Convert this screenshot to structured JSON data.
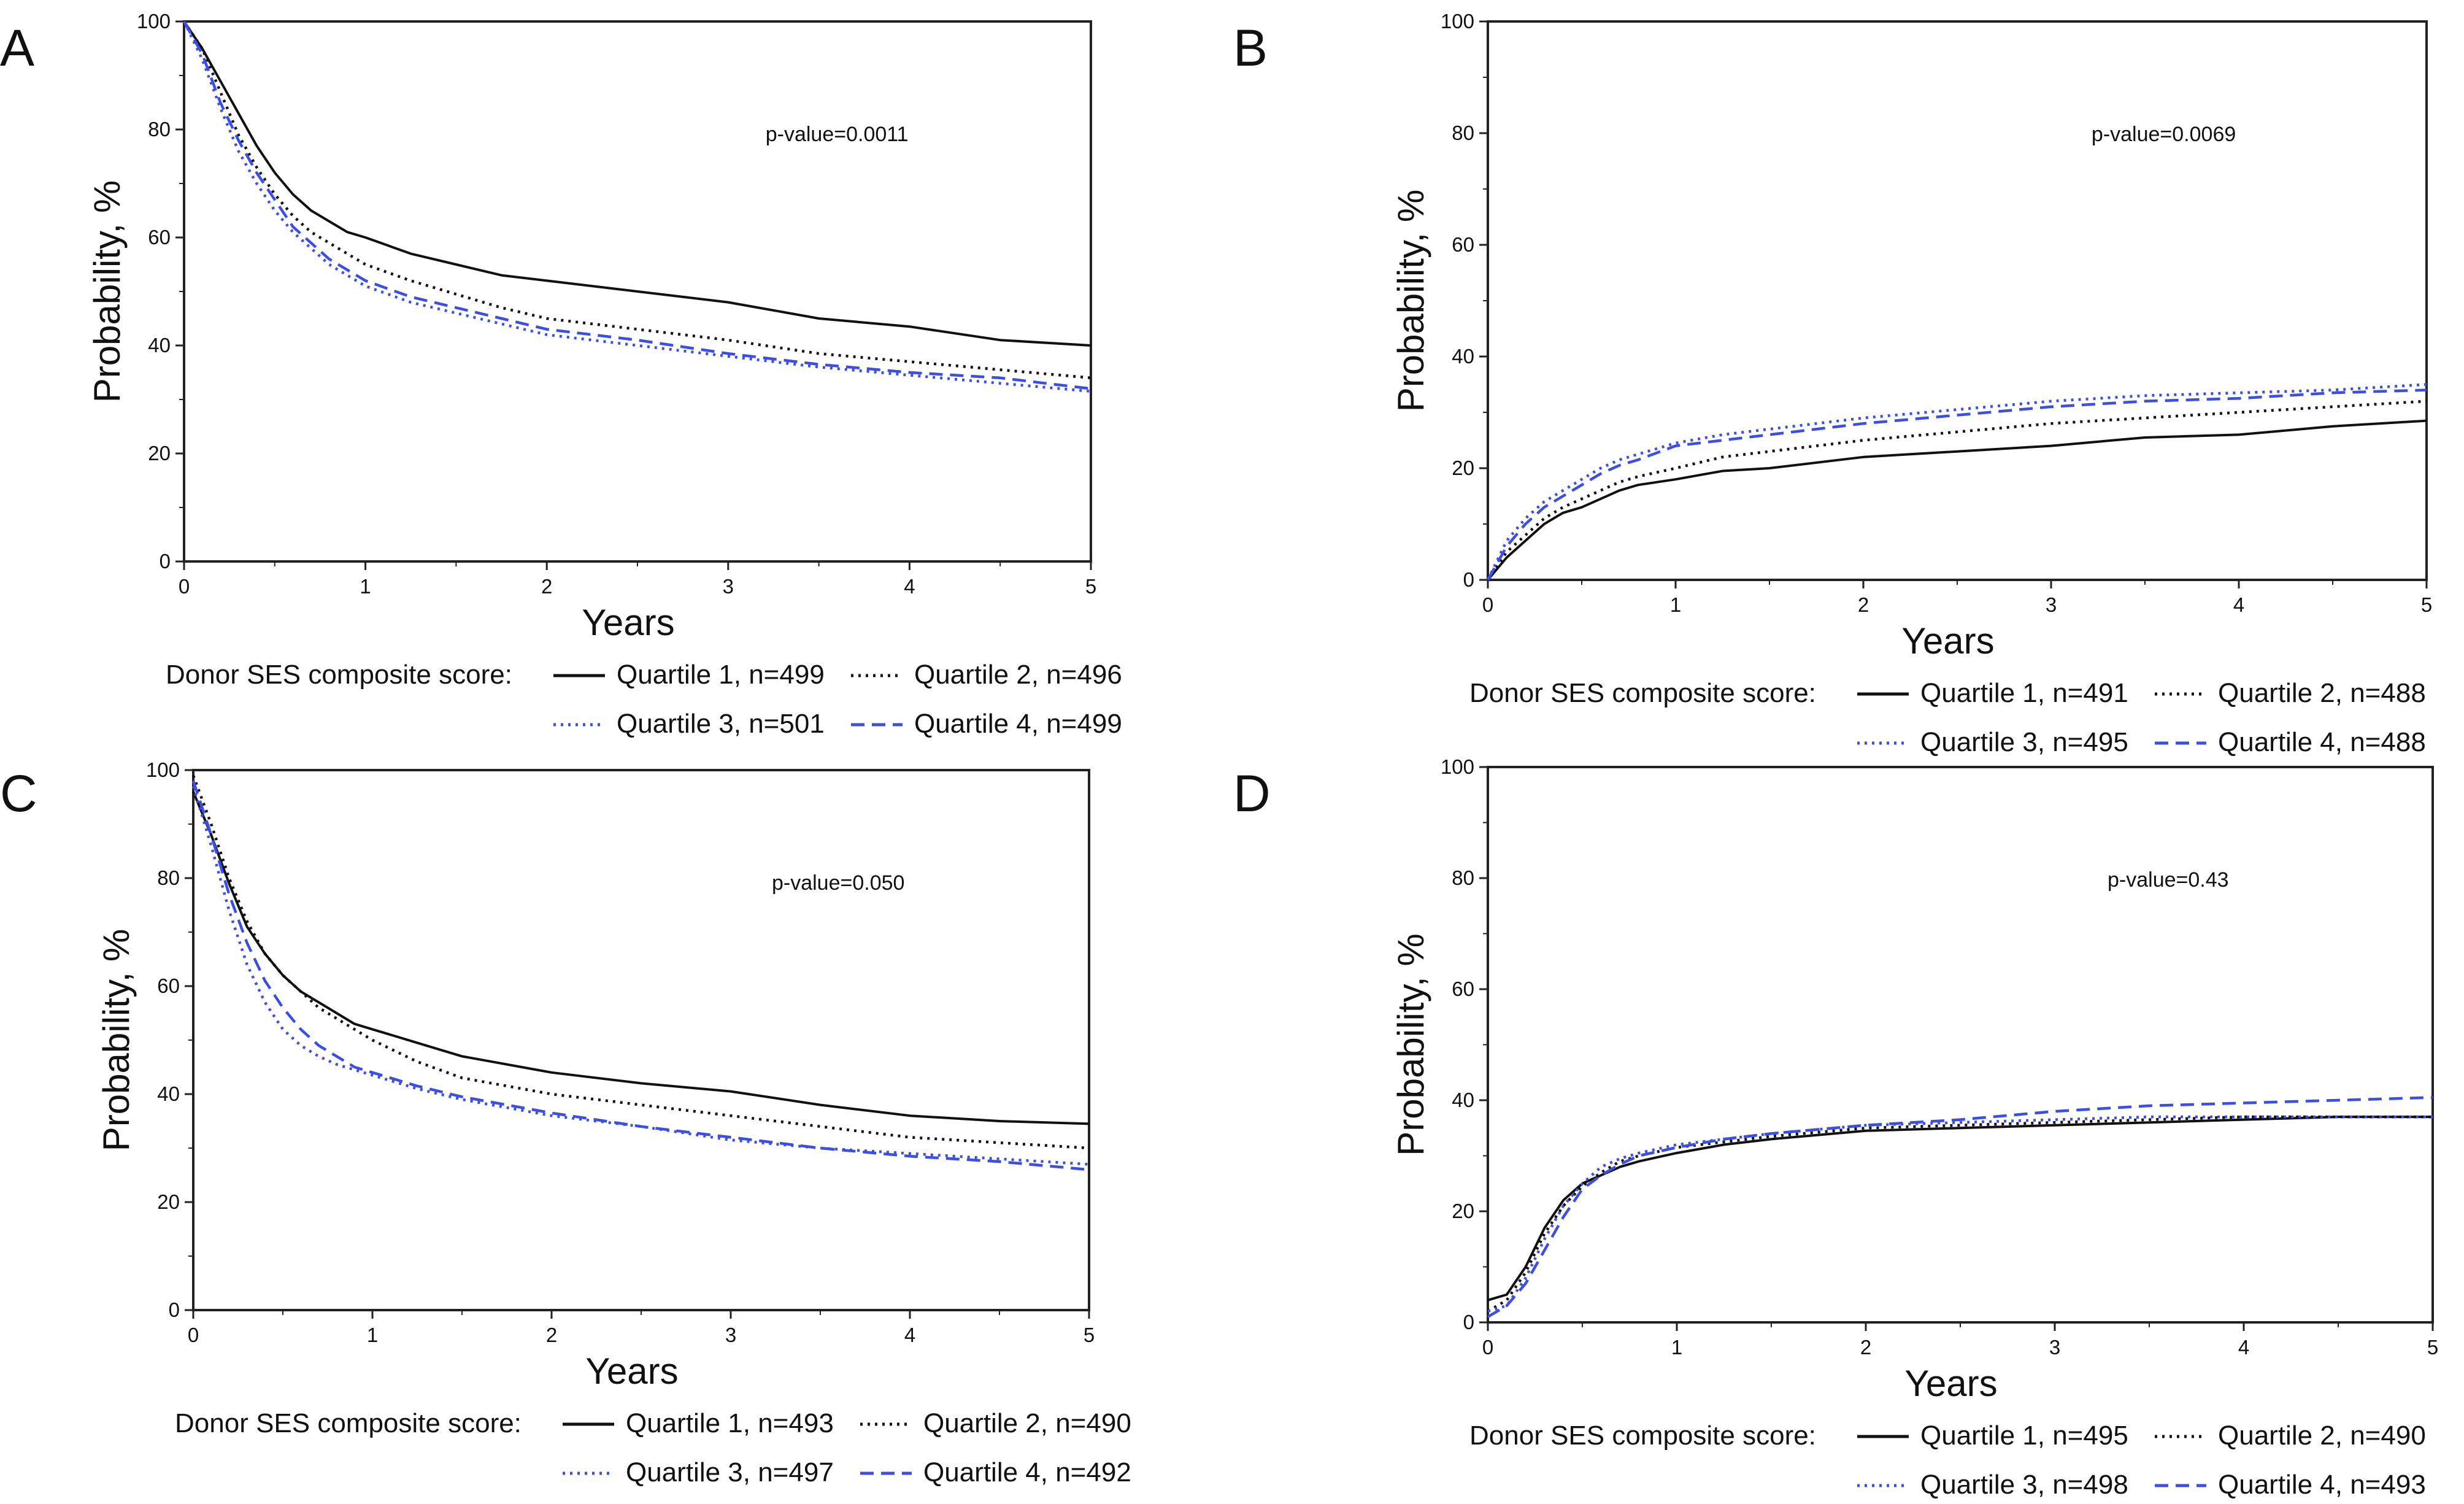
{
  "figure": {
    "legend_title": "Donor SES composite score:",
    "y_axis_label": "Probability, %",
    "x_axis_label": "Years",
    "colors": {
      "black": "#111111",
      "blue": "#3d4fe0"
    }
  },
  "chart_data": [
    {
      "panel": "A",
      "type": "line",
      "xlabel": "Years",
      "ylabel": "Probability, %",
      "xlim": [
        0,
        5
      ],
      "ylim": [
        0,
        100
      ],
      "xticks": [
        0,
        1,
        2,
        3,
        4,
        5
      ],
      "yticks": [
        0,
        20,
        40,
        60,
        80,
        100
      ],
      "annotation": "p-value=0.0011",
      "series": [
        {
          "name": "Quartile 1, n=499",
          "color": "black",
          "dash": "solid",
          "x": [
            0,
            0.1,
            0.2,
            0.3,
            0.4,
            0.5,
            0.6,
            0.7,
            0.8,
            0.9,
            1.0,
            1.25,
            1.5,
            1.75,
            2.0,
            2.5,
            3.0,
            3.5,
            4.0,
            4.5,
            5.0
          ],
          "y": [
            100,
            95,
            89,
            83,
            77,
            72,
            68,
            65,
            63,
            61,
            60,
            57,
            55,
            53,
            52,
            50,
            48,
            45,
            43.5,
            41,
            40
          ]
        },
        {
          "name": "Quartile 2, n=496",
          "color": "black",
          "dash": "dot",
          "x": [
            0,
            0.1,
            0.2,
            0.3,
            0.4,
            0.5,
            0.6,
            0.7,
            0.8,
            0.9,
            1.0,
            1.25,
            1.5,
            1.75,
            2.0,
            2.5,
            3.0,
            3.5,
            4.0,
            4.5,
            5.0
          ],
          "y": [
            100,
            95,
            87,
            79,
            73,
            68,
            64,
            61,
            59,
            57,
            55,
            52,
            49.5,
            47,
            45,
            43,
            41,
            38.5,
            37,
            35.5,
            34
          ]
        },
        {
          "name": "Quartile 3, n=501",
          "color": "blue",
          "dash": "dot",
          "x": [
            0,
            0.1,
            0.2,
            0.3,
            0.4,
            0.5,
            0.6,
            0.7,
            0.8,
            0.9,
            1.0,
            1.25,
            1.5,
            1.75,
            2.0,
            2.5,
            3.0,
            3.5,
            4.0,
            4.5,
            5.0
          ],
          "y": [
            100,
            93,
            84,
            76,
            70,
            65,
            61,
            58,
            55,
            53,
            51,
            48,
            46,
            44,
            42,
            40,
            38,
            36,
            34.5,
            33,
            31.5
          ]
        },
        {
          "name": "Quartile 4, n=499",
          "color": "blue",
          "dash": "dash",
          "x": [
            0,
            0.1,
            0.2,
            0.3,
            0.4,
            0.5,
            0.6,
            0.7,
            0.8,
            0.9,
            1.0,
            1.25,
            1.5,
            1.75,
            2.0,
            2.5,
            3.0,
            3.5,
            4.0,
            4.5,
            5.0
          ],
          "y": [
            100,
            94,
            85,
            78,
            72,
            67,
            62,
            59,
            56,
            54,
            52,
            49,
            47,
            45,
            43,
            41,
            38.5,
            36.5,
            35,
            34,
            32
          ]
        }
      ],
      "legend": [
        "Quartile 1, n=499",
        "Quartile 2, n=496",
        "Quartile 3, n=501",
        "Quartile 4, n=499"
      ]
    },
    {
      "panel": "B",
      "type": "line",
      "xlabel": "Years",
      "ylabel": "Probability, %",
      "xlim": [
        0,
        5
      ],
      "ylim": [
        0,
        100
      ],
      "xticks": [
        0,
        1,
        2,
        3,
        4,
        5
      ],
      "yticks": [
        0,
        20,
        40,
        60,
        80,
        100
      ],
      "annotation": "p-value=0.0069",
      "series": [
        {
          "name": "Quartile 1, n=491",
          "color": "black",
          "dash": "solid",
          "x": [
            0,
            0.1,
            0.2,
            0.3,
            0.4,
            0.5,
            0.6,
            0.7,
            0.8,
            1.0,
            1.25,
            1.5,
            2.0,
            2.5,
            3.0,
            3.5,
            4.0,
            4.5,
            5.0
          ],
          "y": [
            0,
            4,
            7,
            10,
            12,
            13,
            14.5,
            16,
            17,
            18,
            19.5,
            20,
            22,
            23,
            24,
            25.5,
            26,
            27.5,
            28.5
          ]
        },
        {
          "name": "Quartile 2, n=488",
          "color": "black",
          "dash": "dot",
          "x": [
            0,
            0.1,
            0.2,
            0.3,
            0.4,
            0.5,
            0.6,
            0.7,
            0.8,
            1.0,
            1.25,
            1.5,
            2.0,
            2.5,
            3.0,
            3.5,
            4.0,
            4.5,
            5.0
          ],
          "y": [
            0,
            5,
            8,
            11,
            13,
            14.5,
            16,
            17.5,
            18.5,
            20,
            22,
            23,
            25,
            26.5,
            28,
            29,
            30,
            31,
            32
          ]
        },
        {
          "name": "Quartile 3, n=495",
          "color": "blue",
          "dash": "dot",
          "x": [
            0,
            0.1,
            0.2,
            0.3,
            0.4,
            0.5,
            0.6,
            0.7,
            0.8,
            1.0,
            1.25,
            1.5,
            2.0,
            2.5,
            3.0,
            3.5,
            4.0,
            4.5,
            5.0
          ],
          "y": [
            0,
            7,
            11,
            14,
            16,
            18,
            20,
            21.5,
            22.5,
            24.5,
            26,
            27,
            29,
            30.5,
            32,
            33,
            33.5,
            34,
            35
          ]
        },
        {
          "name": "Quartile 4, n=488",
          "color": "blue",
          "dash": "dash",
          "x": [
            0,
            0.1,
            0.2,
            0.3,
            0.4,
            0.5,
            0.6,
            0.7,
            0.8,
            1.0,
            1.25,
            1.5,
            2.0,
            2.5,
            3.0,
            3.5,
            4.0,
            4.5,
            5.0
          ],
          "y": [
            0,
            6,
            10,
            13,
            15,
            17,
            19,
            20.5,
            21.5,
            24,
            25,
            26,
            28,
            29.5,
            31,
            32,
            32.5,
            33.5,
            34
          ]
        }
      ],
      "legend": [
        "Quartile 1, n=491",
        "Quartile 2, n=488",
        "Quartile 3, n=495",
        "Quartile 4, n=488"
      ]
    },
    {
      "panel": "C",
      "type": "line",
      "xlabel": "Years",
      "ylabel": "Probability, %",
      "xlim": [
        0,
        5
      ],
      "ylim": [
        0,
        100
      ],
      "xticks": [
        0,
        1,
        2,
        3,
        4,
        5
      ],
      "yticks": [
        0,
        20,
        40,
        60,
        80,
        100
      ],
      "annotation": "p-value=0.050",
      "series": [
        {
          "name": "Quartile 1, n=493",
          "color": "black",
          "dash": "solid",
          "x": [
            0,
            0.1,
            0.2,
            0.3,
            0.4,
            0.5,
            0.6,
            0.7,
            0.8,
            0.9,
            1.0,
            1.25,
            1.5,
            2.0,
            2.5,
            3.0,
            3.5,
            4.0,
            4.5,
            5.0
          ],
          "y": [
            96,
            88,
            79,
            71,
            66,
            62,
            59,
            57,
            55,
            53,
            52,
            49.5,
            47,
            44,
            42,
            40.5,
            38,
            36,
            35,
            34.5
          ]
        },
        {
          "name": "Quartile 2, n=490",
          "color": "black",
          "dash": "dot",
          "x": [
            0,
            0.1,
            0.2,
            0.3,
            0.4,
            0.5,
            0.6,
            0.7,
            0.8,
            0.9,
            1.0,
            1.25,
            1.5,
            2.0,
            2.5,
            3.0,
            3.5,
            4.0,
            4.5,
            5.0
          ],
          "y": [
            99,
            90,
            80,
            72,
            66,
            62,
            59,
            56,
            54,
            52,
            50,
            46,
            43,
            40,
            38,
            36,
            34,
            32,
            31,
            30
          ]
        },
        {
          "name": "Quartile 3, n=497",
          "color": "blue",
          "dash": "dot",
          "x": [
            0,
            0.1,
            0.2,
            0.3,
            0.4,
            0.5,
            0.6,
            0.7,
            0.8,
            0.9,
            1.0,
            1.25,
            1.5,
            2.0,
            2.5,
            3.0,
            3.5,
            4.0,
            4.5,
            5.0
          ],
          "y": [
            97,
            86,
            74,
            64,
            57,
            52,
            49,
            47,
            45.5,
            44.5,
            43.5,
            41,
            39,
            36,
            34,
            31.5,
            30,
            29,
            28,
            27
          ]
        },
        {
          "name": "Quartile 4, n=492",
          "color": "blue",
          "dash": "dash",
          "x": [
            0,
            0.1,
            0.2,
            0.3,
            0.4,
            0.5,
            0.6,
            0.7,
            0.8,
            0.9,
            1.0,
            1.25,
            1.5,
            2.0,
            2.5,
            3.0,
            3.5,
            4.0,
            4.5,
            5.0
          ],
          "y": [
            98,
            88,
            77,
            68,
            61,
            56,
            52,
            49,
            47,
            45,
            44,
            41.5,
            39.5,
            36.5,
            34,
            32,
            30,
            28.5,
            27.5,
            26
          ]
        }
      ],
      "legend": [
        "Quartile 1, n=493",
        "Quartile 2, n=490",
        "Quartile 3, n=497",
        "Quartile 4, n=492"
      ]
    },
    {
      "panel": "D",
      "type": "line",
      "xlabel": "Years",
      "ylabel": "Probability, %",
      "xlim": [
        0,
        5
      ],
      "ylim": [
        0,
        100
      ],
      "xticks": [
        0,
        1,
        2,
        3,
        4,
        5
      ],
      "yticks": [
        0,
        20,
        40,
        60,
        80,
        100
      ],
      "annotation": "p-value=0.43",
      "series": [
        {
          "name": "Quartile 1, n=495",
          "color": "black",
          "dash": "solid",
          "x": [
            0,
            0.1,
            0.2,
            0.3,
            0.4,
            0.5,
            0.6,
            0.7,
            0.8,
            1.0,
            1.25,
            1.5,
            2.0,
            2.5,
            3.0,
            3.5,
            4.0,
            4.5,
            5.0
          ],
          "y": [
            4,
            5,
            10,
            17,
            22,
            25,
            26.5,
            28,
            29,
            30.5,
            32,
            33,
            34.5,
            35,
            35.5,
            36,
            36.5,
            37,
            37
          ]
        },
        {
          "name": "Quartile 2, n=490",
          "color": "black",
          "dash": "dot",
          "x": [
            0,
            0.1,
            0.2,
            0.3,
            0.4,
            0.5,
            0.6,
            0.7,
            0.8,
            1.0,
            1.25,
            1.5,
            2.0,
            2.5,
            3.0,
            3.5,
            4.0,
            4.5,
            5.0
          ],
          "y": [
            2,
            4,
            9,
            16,
            21,
            24.5,
            27,
            29,
            30,
            31.5,
            32.5,
            33.5,
            35,
            35.5,
            36,
            36.5,
            37,
            37,
            37
          ]
        },
        {
          "name": "Quartile 3, n=498",
          "color": "blue",
          "dash": "dot",
          "x": [
            0,
            0.1,
            0.2,
            0.3,
            0.4,
            0.5,
            0.6,
            0.7,
            0.8,
            1.0,
            1.25,
            1.5,
            2.0,
            2.5,
            3.0,
            3.5,
            4.0,
            4.5,
            5.0
          ],
          "y": [
            2,
            3,
            8,
            15,
            21,
            25,
            28,
            29.5,
            30.5,
            32,
            33,
            34,
            35.5,
            36,
            36.5,
            37,
            37,
            37,
            37
          ]
        },
        {
          "name": "Quartile 4, n=493",
          "color": "blue",
          "dash": "dash",
          "x": [
            0,
            0.1,
            0.2,
            0.3,
            0.4,
            0.5,
            0.6,
            0.7,
            0.8,
            1.0,
            1.25,
            1.5,
            2.0,
            2.5,
            3.0,
            3.5,
            4.0,
            4.5,
            5.0
          ],
          "y": [
            1,
            3,
            7,
            13,
            19,
            24,
            26.5,
            28.5,
            30,
            31.5,
            33,
            34,
            35.5,
            36.5,
            38,
            39,
            39.5,
            40,
            40.5
          ]
        }
      ],
      "legend": [
        "Quartile 1, n=495",
        "Quartile 2, n=490",
        "Quartile 3, n=498",
        "Quartile 4, n=493"
      ]
    }
  ]
}
